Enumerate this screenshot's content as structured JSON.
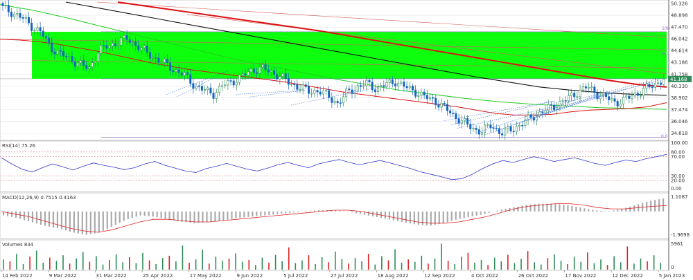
{
  "chart_data": {
    "type": "candlestick",
    "instrument_note": "",
    "colors": {
      "up": "#2e8b57",
      "down": "#1565c0",
      "ma_red": "#dd1111",
      "ma_black": "#111111",
      "ma_green": "#22cc22",
      "fib_zone": "#00ff00",
      "rsi": "#3333cc",
      "macd_hist": "#aaaaaa",
      "macd_signal": "#dd2222",
      "vol_up": "#2e8b57",
      "vol_down": "#dd2222",
      "grid": "#e6e6e6",
      "price_tag": "#2e8b57"
    },
    "price_axis": {
      "ylim": [
        33.9,
        50.5
      ],
      "ticks": [
        "50.326",
        "48.898",
        "47.470",
        "46.042",
        "44.614",
        "43.186",
        "41.758",
        "40.330",
        "38.902",
        "37.474",
        "36.046",
        "34.618"
      ],
      "current_price": "41.168",
      "fib_labels": {
        "top": "100",
        "bottom": "0.0",
        "mid": "76.4"
      }
    },
    "x_labels": [
      "14 Feb 2022",
      "9 Mar 2022",
      "31 Mar 2022",
      "25 Apr 2022",
      "17 May 2022",
      "9 Jun 2022",
      "5 Jul 2022",
      "27 Jul 2022",
      "18 Aug 2022",
      "12 Sep 2022",
      "4 Oct 2022",
      "26 Oct 2022",
      "17 Nov 2022",
      "12 Dec 2022",
      "5 Jan 2023"
    ],
    "close_path": [
      49.8,
      49.2,
      48.6,
      47.6,
      46.8,
      45.0,
      44.2,
      43.6,
      43.0,
      42.4,
      44.6,
      45.2,
      45.6,
      46.1,
      45.2,
      44.4,
      43.6,
      43.0,
      42.2,
      41.6,
      40.4,
      39.8,
      39.4,
      40.4,
      40.9,
      41.5,
      42.2,
      42.5,
      42.0,
      41.5,
      40.6,
      40.2,
      39.6,
      39.8,
      39.0,
      38.2,
      39.6,
      40.2,
      40.6,
      40.0,
      40.5,
      40.9,
      40.2,
      39.7,
      39.0,
      38.6,
      37.8,
      36.8,
      36.0,
      35.2,
      34.8,
      35.6,
      34.6,
      35.0,
      35.6,
      36.4,
      37.0,
      37.6,
      38.2,
      38.8,
      39.6,
      40.2,
      39.4,
      38.9,
      38.3,
      38.7,
      39.3,
      39.9,
      40.5,
      41.17
    ],
    "ma_red_fast": [
      46.0,
      45.9,
      45.7,
      45.4,
      45.0,
      44.6,
      44.1,
      43.6,
      43.1,
      42.7,
      42.3,
      42.0,
      41.7,
      41.4,
      41.1,
      40.8,
      40.4,
      40.0,
      39.6,
      39.3,
      39.0,
      38.7,
      38.4,
      38.1,
      37.8,
      37.4,
      37.0,
      36.8,
      36.8,
      36.9,
      37.2,
      37.4,
      37.5,
      37.6,
      37.8,
      38.3
    ],
    "ma_black": [
      50.5,
      49.8,
      49.1,
      48.4,
      47.7,
      47.0,
      46.3,
      45.6,
      44.9,
      44.2,
      43.5,
      42.8,
      42.1,
      41.4,
      40.8,
      40.2,
      39.8,
      39.5,
      39.3,
      39.2
    ],
    "ma_red_slow": [
      50.5,
      50.0,
      49.5,
      49.0,
      48.5,
      48.0,
      47.5,
      47.0,
      46.4,
      45.8,
      45.2,
      44.6,
      44.0,
      43.4,
      42.8,
      42.2,
      41.6,
      41.0,
      40.5,
      40.2
    ],
    "ma_green": [
      50.2,
      49.5,
      48.6,
      47.6,
      46.6,
      45.6,
      44.6,
      43.6,
      42.8,
      42.0,
      41.2,
      40.5,
      39.8,
      39.3,
      38.8,
      38.4,
      38.1,
      37.9,
      37.7,
      37.6,
      37.5
    ],
    "rsi": {
      "label": "RSI(14) 75.26",
      "levels": [
        "80.00",
        "70.00",
        "30.00",
        "20.00"
      ],
      "top_label": "100.00",
      "bottom_label": "0.00",
      "values": [
        68,
        55,
        44,
        38,
        47,
        55,
        49,
        42,
        50,
        57,
        52,
        48,
        43,
        47,
        55,
        60,
        52,
        46,
        40,
        37,
        45,
        50,
        56,
        50,
        44,
        40,
        46,
        53,
        58,
        52,
        47,
        55,
        60,
        64,
        58,
        53,
        58,
        62,
        57,
        51,
        45,
        38,
        33,
        28,
        22,
        24,
        33,
        45,
        55,
        62,
        58,
        64,
        70,
        66,
        60,
        64,
        68,
        62,
        56,
        52,
        58,
        63,
        60,
        66,
        70,
        75
      ]
    },
    "macd": {
      "label": "MACD(12,26,9) 0.7515 0.4163",
      "top_label": "1.1087",
      "bottom_label": "-1.9698",
      "hist": [
        -0.3,
        -0.5,
        -0.8,
        -1.1,
        -1.3,
        -1.6,
        -1.8,
        -1.6,
        -1.1,
        -0.6,
        -0.3,
        -0.4,
        -0.6,
        -0.8,
        -0.9,
        -0.8,
        -0.7,
        -0.5,
        -0.4,
        -0.3,
        -0.2,
        -0.1,
        0.0,
        0.1,
        0.1,
        0.0,
        -0.2,
        -0.4,
        -0.6,
        -0.8,
        -1.0,
        -1.1,
        -0.9,
        -0.6,
        -0.4,
        -0.2,
        0.1,
        0.3,
        0.5,
        0.6,
        0.6,
        0.5,
        0.3,
        0.1,
        0.0,
        0.2,
        0.5,
        0.8,
        1.0
      ],
      "signal": [
        0.0,
        -0.2,
        -0.4,
        -0.7,
        -1.0,
        -1.3,
        -1.5,
        -1.6,
        -1.4,
        -1.1,
        -0.8,
        -0.6,
        -0.6,
        -0.7,
        -0.8,
        -0.8,
        -0.7,
        -0.6,
        -0.5,
        -0.4,
        -0.3,
        -0.2,
        -0.1,
        0.0,
        0.1,
        0.1,
        0.0,
        -0.2,
        -0.4,
        -0.6,
        -0.8,
        -0.9,
        -0.9,
        -0.8,
        -0.6,
        -0.4,
        -0.1,
        0.2,
        0.4,
        0.5,
        0.6,
        0.6,
        0.5,
        0.3,
        0.2,
        0.2,
        0.3,
        0.4,
        0.45
      ]
    },
    "volumes": {
      "label": "Volumes 834",
      "top_label": "5961",
      "bottom_label": "0",
      "values": [
        2200,
        1800,
        3400,
        1200,
        2800,
        4100,
        1500,
        2600,
        1900,
        3100,
        1300,
        2400,
        3800,
        1700,
        2900,
        1100,
        2100,
        3300,
        1600,
        2700,
        1400,
        3600,
        2000,
        1200,
        2500,
        3000,
        1800,
        5200,
        1500,
        2200,
        4300,
        1300,
        2800,
        1900,
        2400,
        3500,
        1700,
        2100,
        1000,
        2600,
        1500,
        3200,
        1800,
        4800,
        1400,
        2000,
        3100,
        1200,
        2700,
        1600,
        3900,
        2300,
        1300,
        2500,
        1800,
        3400,
        1100,
        2900,
        2000,
        4400,
        1500,
        2200,
        1700,
        3000,
        1300,
        2400,
        5600,
        1900,
        1200,
        2800,
        3600,
        1500,
        2100,
        1000,
        2600,
        1800,
        3200,
        1400,
        2300,
        4000,
        1600,
        1100,
        2500,
        3300,
        1900,
        1200,
        2800,
        1700,
        3700,
        1400,
        2200,
        1000,
        2900,
        1600,
        5000,
        1300,
        2400,
        1800,
        3100,
        1500
      ]
    }
  }
}
